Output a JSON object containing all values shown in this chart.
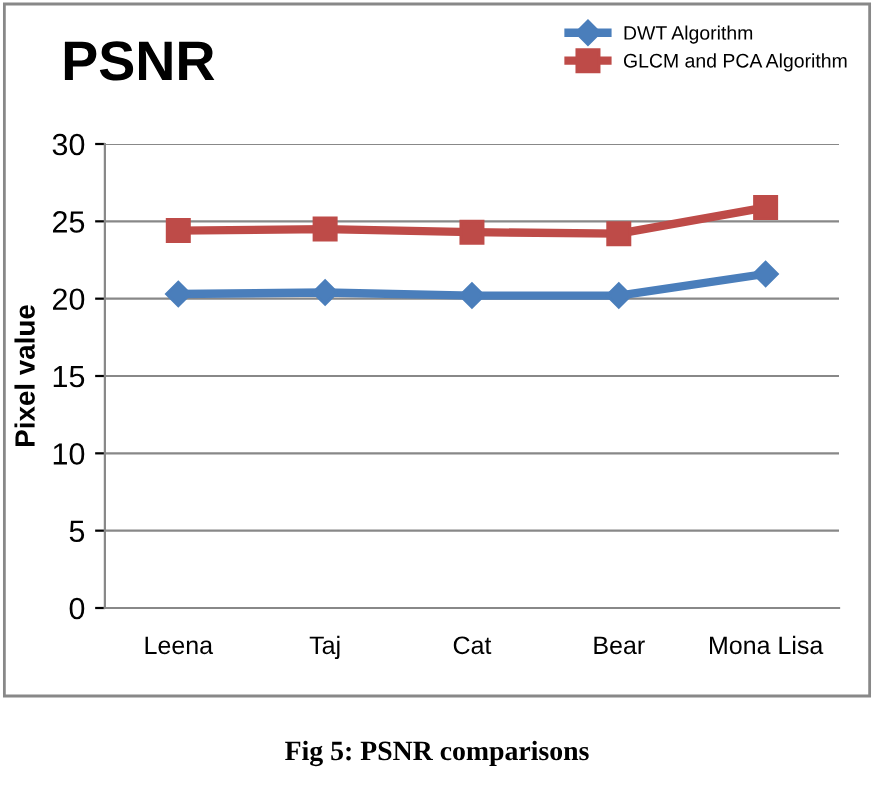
{
  "chart_data": {
    "type": "line",
    "title": "PSNR",
    "ylabel": "Pixel value",
    "categories": [
      "Leena",
      "Taj",
      "Cat",
      "Bear",
      "Mona Lisa"
    ],
    "series": [
      {
        "name": "DWT Algorithm",
        "color": "#4a7ebb",
        "marker": "diamond",
        "values": [
          20.3,
          20.4,
          20.2,
          20.2,
          21.6
        ]
      },
      {
        "name": "GLCM and PCA Algorithm",
        "color": "#be4b48",
        "marker": "square",
        "values": [
          24.4,
          24.5,
          24.3,
          24.2,
          25.9
        ]
      }
    ],
    "ylim": [
      0,
      30
    ],
    "yticks": [
      0,
      5,
      10,
      15,
      20,
      25,
      30
    ],
    "grid": "y",
    "legend": "top right",
    "annotations": [
      "Fig 5: PSNR comparisons"
    ]
  }
}
